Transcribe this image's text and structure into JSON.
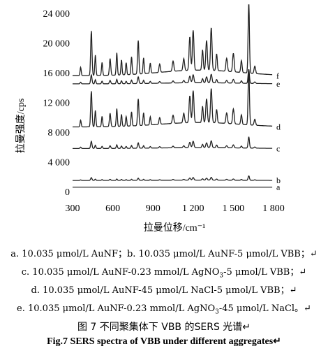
{
  "chart_data": {
    "type": "line",
    "xlabel": "拉曼位移/cm⁻¹",
    "ylabel": "拉曼强度/cps",
    "xlim": [
      300,
      1800
    ],
    "ylim": [
      0,
      24000
    ],
    "x_ticks": [
      "300",
      "600",
      "900",
      "1 200",
      "1 500",
      "1 800"
    ],
    "y_ticks": [
      "0",
      "4 000",
      "8 000",
      "12 000",
      "16 000",
      "20 000",
      "24 000"
    ],
    "grid": false,
    "series": [
      {
        "name": "a",
        "baseline": 600,
        "peak_scale": 0,
        "color": "#222222"
      },
      {
        "name": "b",
        "baseline": 1500,
        "peak_scale": 0.08,
        "color": "#222222"
      },
      {
        "name": "c",
        "baseline": 5800,
        "peak_scale": 0.2,
        "color": "#222222"
      },
      {
        "name": "d",
        "baseline": 8700,
        "peak_scale": 1.0,
        "color": "#222222"
      },
      {
        "name": "e",
        "baseline": 14500,
        "peak_scale": 0.25,
        "color": "#222222"
      },
      {
        "name": "f",
        "baseline": 15600,
        "peak_scale": 1.25,
        "color": "#222222"
      }
    ],
    "peaks": [
      {
        "x": 360,
        "height": 900,
        "width": 6
      },
      {
        "x": 440,
        "height": 4800,
        "width": 7
      },
      {
        "x": 470,
        "height": 2200,
        "width": 6
      },
      {
        "x": 520,
        "height": 1400,
        "width": 6
      },
      {
        "x": 580,
        "height": 1800,
        "width": 7
      },
      {
        "x": 630,
        "height": 2400,
        "width": 6
      },
      {
        "x": 665,
        "height": 1600,
        "width": 6
      },
      {
        "x": 700,
        "height": 1300,
        "width": 6
      },
      {
        "x": 740,
        "height": 1900,
        "width": 6
      },
      {
        "x": 790,
        "height": 3600,
        "width": 7
      },
      {
        "x": 830,
        "height": 1700,
        "width": 6
      },
      {
        "x": 880,
        "height": 1100,
        "width": 6
      },
      {
        "x": 950,
        "height": 900,
        "width": 7
      },
      {
        "x": 1050,
        "height": 1100,
        "width": 8
      },
      {
        "x": 1130,
        "height": 1300,
        "width": 8
      },
      {
        "x": 1175,
        "height": 3600,
        "width": 8
      },
      {
        "x": 1200,
        "height": 4300,
        "width": 8
      },
      {
        "x": 1270,
        "height": 2200,
        "width": 7
      },
      {
        "x": 1300,
        "height": 3200,
        "width": 8
      },
      {
        "x": 1335,
        "height": 4600,
        "width": 8
      },
      {
        "x": 1375,
        "height": 1800,
        "width": 7
      },
      {
        "x": 1450,
        "height": 1400,
        "width": 8
      },
      {
        "x": 1500,
        "height": 2000,
        "width": 8
      },
      {
        "x": 1560,
        "height": 1300,
        "width": 7
      },
      {
        "x": 1615,
        "height": 7500,
        "width": 7
      },
      {
        "x": 1660,
        "height": 800,
        "width": 8
      }
    ]
  },
  "captions": {
    "a": "a. 10.035 μmol/L AuNF；b. 10.035 μmol/L AuNF-5 μmol/L VBB；↵",
    "c_pre": "c. 10.035 μmol/L AuNF-0.23 mmol/L AgNO",
    "c_sub": "3",
    "c_post": "-5 μmol/L VBB；↵",
    "d": "d. 10.035 μmol/L AuNF-45 μmol/L NaCl-5 μmol/L VBB；↵",
    "e_pre": "e. 10.035 μmol/L AuNF-0.23 mmol/L AgNO",
    "e_sub": "3",
    "e_post": "-45 μmol/L NaCl。↵",
    "fig_title_cn": "图 7 不同聚集体下 VBB 的SERS 光谱↵",
    "fig_title_en": "Fig.7 SERS spectra of VBB under different aggregates↵"
  }
}
